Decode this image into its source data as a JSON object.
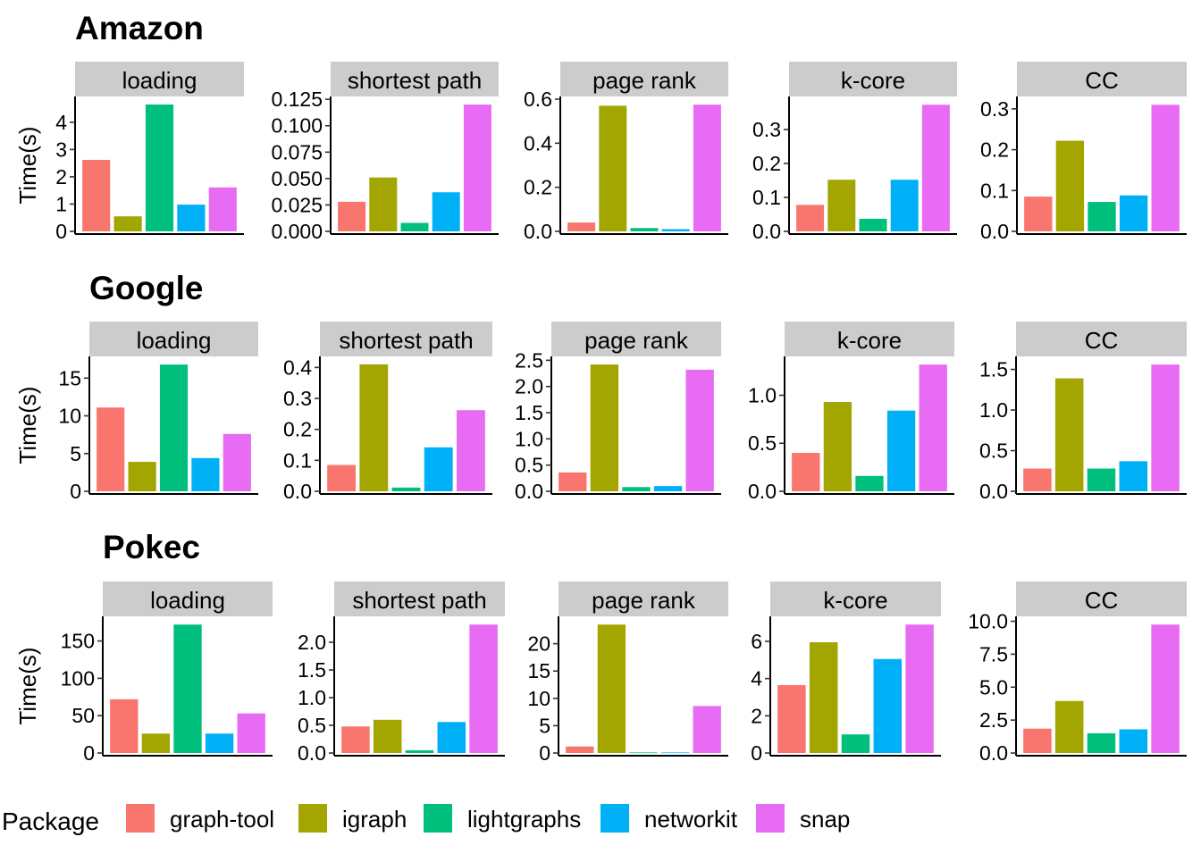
{
  "legend": {
    "title": "Package",
    "items": [
      {
        "label": "graph-tool",
        "color": "#F8766D"
      },
      {
        "label": "igraph",
        "color": "#A3A500"
      },
      {
        "label": "lightgraphs",
        "color": "#00BF7D"
      },
      {
        "label": "networkit",
        "color": "#00B0F6"
      },
      {
        "label": "snap",
        "color": "#E76BF3"
      }
    ]
  },
  "chart_data": [
    {
      "type": "bar",
      "title": "Amazon",
      "ylabel": "Time(s)",
      "categories": [
        "graph-tool",
        "igraph",
        "lightgraphs",
        "networkit",
        "snap"
      ],
      "panels": [
        {
          "strip": "loading",
          "values": [
            2.62,
            0.55,
            4.65,
            0.98,
            1.61
          ],
          "ylim": [
            0,
            4.88
          ],
          "ticks": [
            "0",
            "1",
            "2",
            "3",
            "4"
          ]
        },
        {
          "strip": "shortest path",
          "values": [
            0.028,
            0.051,
            0.008,
            0.037,
            0.12
          ],
          "ylim": [
            0,
            0.126
          ],
          "ticks": [
            "0.000",
            "0.025",
            "0.050",
            "0.075",
            "0.100",
            "0.125"
          ]
        },
        {
          "strip": "page rank",
          "values": [
            0.04,
            0.57,
            0.015,
            0.01,
            0.575
          ],
          "ylim": [
            0,
            0.604
          ],
          "ticks": [
            "0.0",
            "0.2",
            "0.4",
            "0.6"
          ]
        },
        {
          "strip": "k-core",
          "values": [
            0.078,
            0.152,
            0.037,
            0.152,
            0.373
          ],
          "ylim": [
            0,
            0.392
          ],
          "ticks": [
            "0.0",
            "0.1",
            "0.2",
            "0.3"
          ]
        },
        {
          "strip": "CC",
          "values": [
            0.085,
            0.222,
            0.072,
            0.088,
            0.31
          ],
          "ylim": [
            0,
            0.326
          ],
          "ticks": [
            "0.0",
            "0.1",
            "0.2",
            "0.3"
          ]
        }
      ]
    },
    {
      "type": "bar",
      "title": "Google",
      "ylabel": "Time(s)",
      "categories": [
        "graph-tool",
        "igraph",
        "lightgraphs",
        "networkit",
        "snap"
      ],
      "panels": [
        {
          "strip": "loading",
          "values": [
            11.1,
            3.9,
            16.8,
            4.4,
            7.6
          ],
          "ylim": [
            0,
            17.64
          ],
          "ticks": [
            "0",
            "5",
            "10",
            "15"
          ]
        },
        {
          "strip": "shortest path",
          "values": [
            0.085,
            0.41,
            0.012,
            0.142,
            0.262
          ],
          "ylim": [
            0,
            0.43
          ],
          "ticks": [
            "0.0",
            "0.1",
            "0.2",
            "0.3",
            "0.4"
          ]
        },
        {
          "strip": "page rank",
          "values": [
            0.36,
            2.42,
            0.08,
            0.1,
            2.32
          ],
          "ylim": [
            0,
            2.54
          ],
          "ticks": [
            "0.0",
            "0.5",
            "1.0",
            "1.5",
            "2.0",
            "2.5"
          ]
        },
        {
          "strip": "k-core",
          "values": [
            0.4,
            0.93,
            0.16,
            0.84,
            1.32
          ],
          "ylim": [
            0,
            1.386
          ],
          "ticks": [
            "0.0",
            "0.5",
            "1.0"
          ]
        },
        {
          "strip": "CC",
          "values": [
            0.28,
            1.39,
            0.28,
            0.37,
            1.56
          ],
          "ylim": [
            0,
            1.638
          ],
          "ticks": [
            "0.0",
            "0.5",
            "1.0",
            "1.5"
          ]
        }
      ]
    },
    {
      "type": "bar",
      "title": "Pokec",
      "ylabel": "Time(s)",
      "categories": [
        "graph-tool",
        "igraph",
        "lightgraphs",
        "networkit",
        "snap"
      ],
      "panels": [
        {
          "strip": "loading",
          "values": [
            72,
            26,
            172,
            26,
            53
          ],
          "ylim": [
            0,
            180.6
          ],
          "ticks": [
            "0",
            "50",
            "100",
            "150"
          ]
        },
        {
          "strip": "shortest path",
          "values": [
            0.48,
            0.6,
            0.05,
            0.56,
            2.32
          ],
          "ylim": [
            0,
            2.436
          ],
          "ticks": [
            "0.0",
            "0.5",
            "1.0",
            "1.5",
            "2.0"
          ]
        },
        {
          "strip": "page rank",
          "values": [
            1.2,
            23.5,
            0.1,
            0.1,
            8.6
          ],
          "ylim": [
            0,
            24.675
          ],
          "ticks": [
            "0",
            "5",
            "10",
            "15",
            "20"
          ]
        },
        {
          "strip": "k-core",
          "values": [
            3.65,
            5.95,
            1.0,
            5.05,
            6.9
          ],
          "ylim": [
            0,
            7.245
          ],
          "ticks": [
            "0",
            "2",
            "4",
            "6"
          ]
        },
        {
          "strip": "CC",
          "values": [
            1.85,
            3.95,
            1.5,
            1.8,
            9.75
          ],
          "ylim": [
            0,
            10.2375
          ],
          "ticks": [
            "0.0",
            "2.5",
            "5.0",
            "7.5",
            "10.0"
          ]
        }
      ]
    }
  ]
}
